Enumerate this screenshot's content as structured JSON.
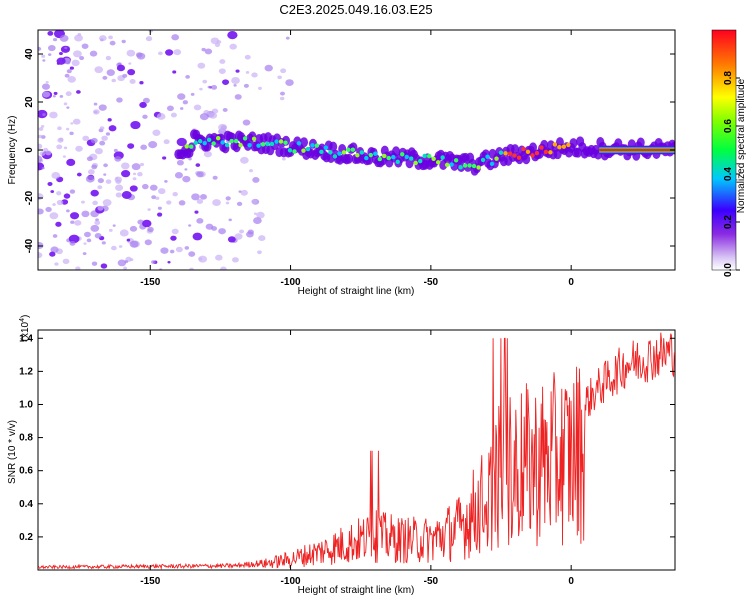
{
  "title": "C2E3.2025.049.16.03.E25",
  "chart_data": [
    {
      "type": "heatmap",
      "xlabel": "Height of straight line (km)",
      "ylabel": "Frequency (Hz)",
      "xlim": [
        -190,
        37
      ],
      "ylim": [
        -50,
        50
      ],
      "x_ticks": [
        -150,
        -100,
        -50,
        0
      ],
      "y_ticks": [
        -40,
        -20,
        0,
        20,
        40
      ],
      "colorbar": {
        "label": "Normalized spectral amplitude",
        "range": [
          0,
          1
        ],
        "ticks": [
          "0.0",
          "0.2",
          "0.4",
          "0.6",
          "0.8"
        ],
        "tick_values": [
          0.0,
          0.2,
          0.4,
          0.6,
          0.8
        ]
      },
      "ridge": {
        "description_points": [
          {
            "x": -135,
            "freq": 4
          },
          {
            "x": -110,
            "freq": 3
          },
          {
            "x": -90,
            "freq": 0
          },
          {
            "x": -70,
            "freq": -3
          },
          {
            "x": -50,
            "freq": -4
          },
          {
            "x": -35,
            "freq": -6
          },
          {
            "x": -25,
            "freq": -3
          },
          {
            "x": -10,
            "freq": 0
          },
          {
            "x": 0,
            "freq": 1
          },
          {
            "x": 37,
            "freq": 0
          }
        ]
      },
      "noise_region": {
        "x_from": -190,
        "x_to": -110
      }
    },
    {
      "type": "line",
      "xlabel": "Height of straight line (km)",
      "ylabel": "SNR (10 * v/v)",
      "y_multiplier": "(x10",
      "y_multiplier_exp": "4",
      "y_multiplier_close": ")",
      "xlim": [
        -190,
        37
      ],
      "ylim": [
        0,
        1.45
      ],
      "x_ticks": [
        -150,
        -100,
        -50,
        0
      ],
      "y_ticks": [
        0.2,
        0.4,
        0.6,
        0.8,
        1.0,
        1.2,
        1.4
      ],
      "line_color": "#ee2222",
      "series": [
        {
          "envelope_x": [
            -190,
            -120,
            -110,
            -100,
            -90,
            -80,
            -70,
            -60,
            -50,
            -40,
            -30,
            -25,
            -20,
            -10,
            0,
            10,
            20,
            37
          ],
          "envelope_y": [
            0.02,
            0.03,
            0.05,
            0.09,
            0.15,
            0.22,
            0.28,
            0.25,
            0.25,
            0.35,
            0.6,
            0.8,
            0.85,
            0.9,
            0.95,
            1.15,
            1.3,
            1.38
          ]
        }
      ]
    }
  ]
}
